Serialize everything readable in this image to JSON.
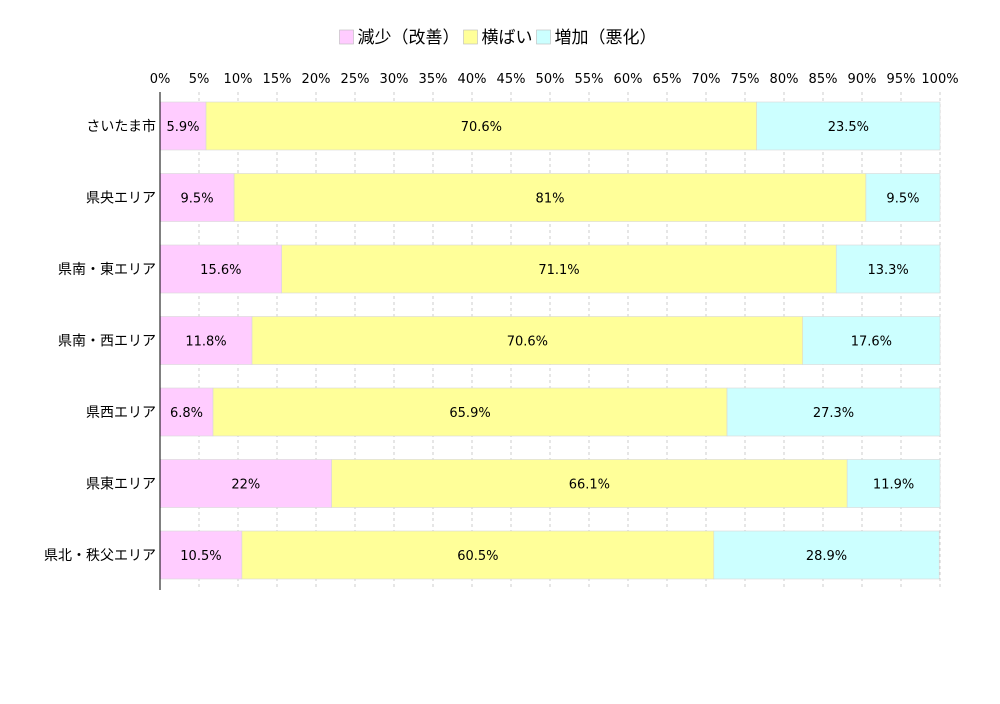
{
  "chart_data": {
    "type": "bar",
    "orientation": "horizontal",
    "stacked": true,
    "title": "",
    "xlabel": "",
    "ylabel": "",
    "xlim": [
      0,
      100
    ],
    "x_ticks": [
      "0%",
      "5%",
      "10%",
      "15%",
      "20%",
      "25%",
      "30%",
      "35%",
      "40%",
      "45%",
      "50%",
      "55%",
      "60%",
      "65%",
      "70%",
      "75%",
      "80%",
      "85%",
      "90%",
      "95%",
      "100%"
    ],
    "grid": "vertical dashed",
    "legend_position": "top-center",
    "categories": [
      "さいたま市",
      "県央エリア",
      "県南・東エリア",
      "県南・西エリア",
      "県西エリア",
      "県東エリア",
      "県北・秩父エリア"
    ],
    "series": [
      {
        "name": "減少（改善）",
        "color": "#ffccff",
        "values": [
          5.9,
          9.5,
          15.6,
          11.8,
          6.8,
          22,
          10.5
        ],
        "labels": [
          "5.9%",
          "9.5%",
          "15.6%",
          "11.8%",
          "6.8%",
          "22%",
          "10.5%"
        ]
      },
      {
        "name": "横ばい",
        "color": "#ffff99",
        "values": [
          70.6,
          81,
          71.1,
          70.6,
          65.9,
          66.1,
          60.5
        ],
        "labels": [
          "70.6%",
          "81%",
          "71.1%",
          "70.6%",
          "65.9%",
          "66.1%",
          "60.5%"
        ]
      },
      {
        "name": "増加（悪化）",
        "color": "#ccffff",
        "values": [
          23.5,
          9.5,
          13.3,
          17.6,
          27.3,
          11.9,
          28.9
        ],
        "labels": [
          "23.5%",
          "9.5%",
          "13.3%",
          "17.6%",
          "27.3%",
          "11.9%",
          "28.9%"
        ]
      }
    ]
  }
}
